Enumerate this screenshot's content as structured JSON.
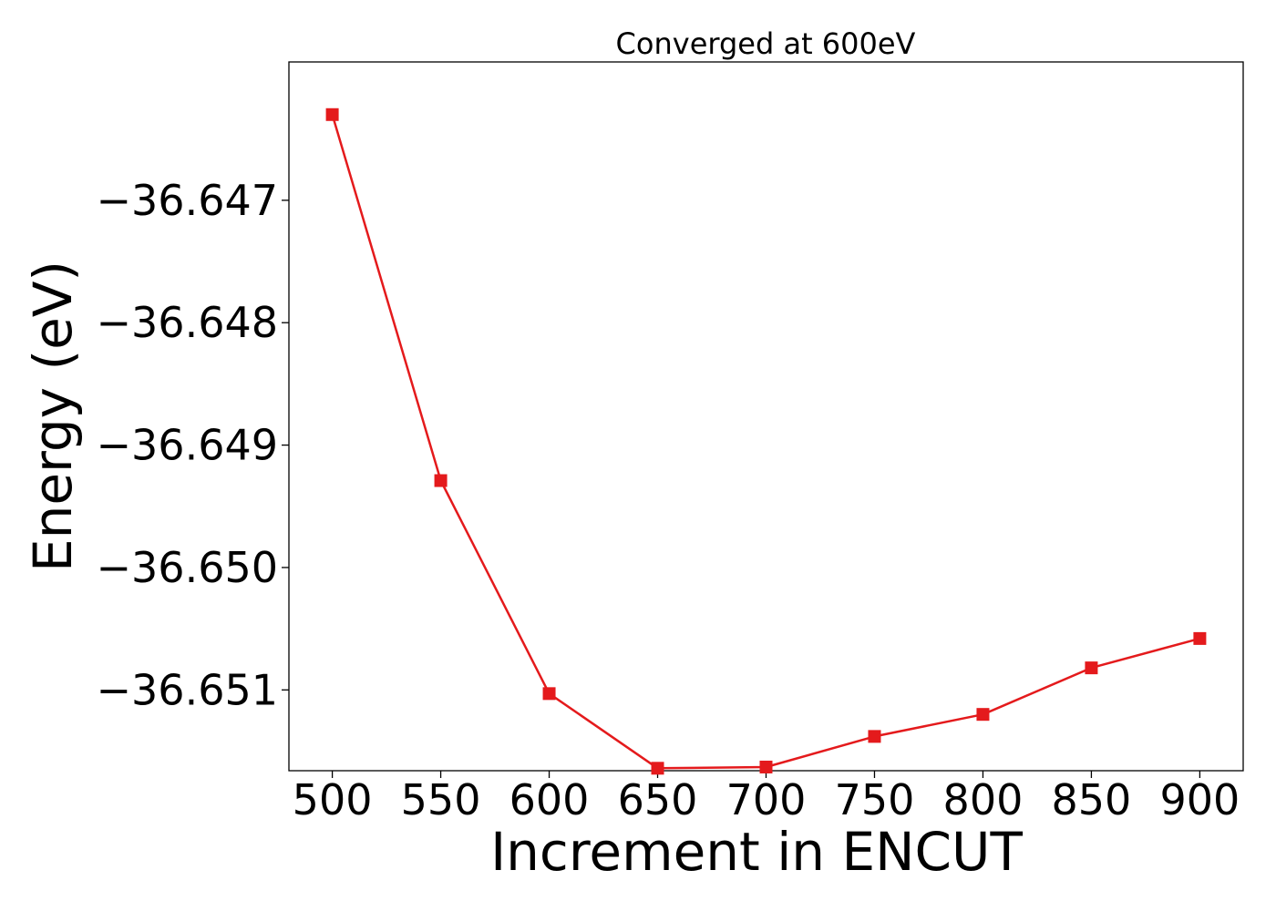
{
  "chart_data": {
    "type": "line",
    "title": "Converged at 600eV",
    "xlabel": "Increment in ENCUT",
    "ylabel": "Energy (eV)",
    "x": [
      500,
      550,
      600,
      650,
      700,
      750,
      800,
      850,
      900
    ],
    "x_tick_labels": [
      "500",
      "550",
      "600",
      "650",
      "700",
      "750",
      "800",
      "850",
      "900"
    ],
    "y_ticks": [
      -36.647,
      -36.648,
      -36.649,
      -36.65,
      -36.651
    ],
    "y_tick_labels": [
      "−36.647",
      "−36.648",
      "−36.649",
      "−36.650",
      "−36.651"
    ],
    "xlim": [
      480,
      920
    ],
    "ylim": [
      -36.65166,
      -36.64587
    ],
    "series": [
      {
        "values": [
          -36.6463,
          -36.64929,
          -36.65103,
          -36.65164,
          -36.65163,
          -36.65138,
          -36.6512,
          -36.65082,
          -36.65058
        ],
        "color": "#e41a1c",
        "marker": "square"
      }
    ],
    "grid": false,
    "legend": "none"
  }
}
